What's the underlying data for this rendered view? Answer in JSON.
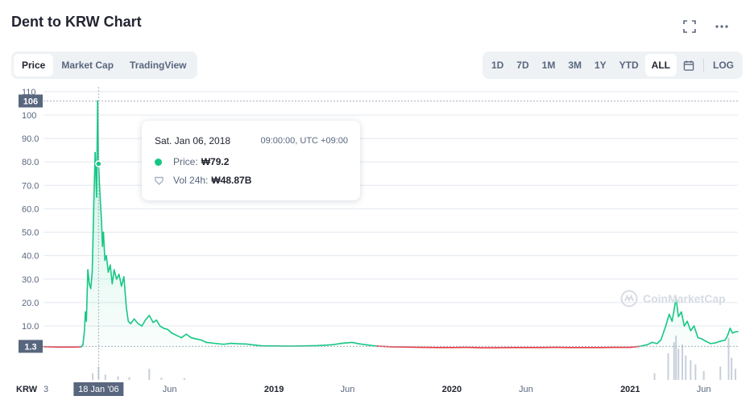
{
  "header": {
    "title": "Dent to KRW Chart"
  },
  "icons": {
    "expand": "expand-icon",
    "more": "more-icon",
    "calendar": "calendar-icon"
  },
  "tabs_left": [
    {
      "label": "Price",
      "active": true
    },
    {
      "label": "Market Cap",
      "active": false
    },
    {
      "label": "TradingView",
      "active": false
    }
  ],
  "tabs_right": [
    {
      "label": "1D",
      "active": false
    },
    {
      "label": "7D",
      "active": false
    },
    {
      "label": "1M",
      "active": false
    },
    {
      "label": "3M",
      "active": false
    },
    {
      "label": "1Y",
      "active": false
    },
    {
      "label": "YTD",
      "active": false
    },
    {
      "label": "ALL",
      "active": true
    },
    {
      "label": "LOG",
      "active": false
    }
  ],
  "tooltip": {
    "date": "Sat. Jan 06, 2018",
    "time": "09:00:00, UTC +09:00",
    "price_label": "Price:",
    "price_value": "₩79.2",
    "vol_label": "Vol 24h:",
    "vol_value": "₩48.87B"
  },
  "watermark": "CoinMarketCap",
  "colors": {
    "up": "#16c784",
    "down": "#ea3943",
    "label_bg": "#58667e",
    "grid": "#e3e8ef"
  },
  "chart_data": {
    "type": "line",
    "y_axis_title": "KRW",
    "y_ticks": [
      "110",
      "100",
      "90.0",
      "80.0",
      "70.0",
      "60.0",
      "50.0",
      "40.0",
      "30.0",
      "20.0",
      "10.0"
    ],
    "y_tick_values": [
      110,
      100,
      90,
      80,
      70,
      60,
      50,
      40,
      30,
      20,
      10
    ],
    "ylim": [
      -13,
      112
    ],
    "max_label": "106",
    "max_value": 106,
    "baseline_label": "1.3",
    "baseline_value": 1.3,
    "crosshair_label": "18 Jan '06",
    "crosshair_date": "2018-01-06",
    "crosshair_value": 79.2,
    "x_ticks": [
      {
        "label": "3",
        "date": "2017-09-15",
        "year": false
      },
      {
        "label": "Jun",
        "date": "2018-06-01",
        "year": false
      },
      {
        "label": "2019",
        "date": "2019-01-01",
        "year": true
      },
      {
        "label": "Jun",
        "date": "2019-06-01",
        "year": false
      },
      {
        "label": "2020",
        "date": "2020-01-01",
        "year": true
      },
      {
        "label": "Jun",
        "date": "2020-06-01",
        "year": false
      },
      {
        "label": "2021",
        "date": "2021-01-01",
        "year": true
      },
      {
        "label": "Jun",
        "date": "2021-06-01",
        "year": false
      }
    ],
    "xlim": [
      "2017-09-15",
      "2021-08-10"
    ],
    "series": [
      {
        "values": [
          [
            "2017-09-15",
            1.2
          ],
          [
            "2017-10-15",
            1.0
          ],
          [
            "2017-11-15",
            1.0
          ],
          [
            "2017-12-01",
            1.1
          ],
          [
            "2017-12-05",
            2.0
          ],
          [
            "2017-12-08",
            8.0
          ],
          [
            "2017-12-10",
            16.0
          ],
          [
            "2017-12-12",
            12.0
          ],
          [
            "2017-12-15",
            34.0
          ],
          [
            "2017-12-18",
            28.0
          ],
          [
            "2017-12-21",
            26.0
          ],
          [
            "2017-12-24",
            33.0
          ],
          [
            "2017-12-27",
            60.0
          ],
          [
            "2017-12-30",
            84.0
          ],
          [
            "2018-01-02",
            65.0
          ],
          [
            "2018-01-04",
            106.0
          ],
          [
            "2018-01-06",
            79.2
          ],
          [
            "2018-01-08",
            70.0
          ],
          [
            "2018-01-10",
            62.0
          ],
          [
            "2018-01-12",
            55.0
          ],
          [
            "2018-01-14",
            44.0
          ],
          [
            "2018-01-16",
            50.0
          ],
          [
            "2018-01-19",
            38.0
          ],
          [
            "2018-01-22",
            40.0
          ],
          [
            "2018-01-26",
            33.0
          ],
          [
            "2018-01-30",
            36.0
          ],
          [
            "2018-02-03",
            28.0
          ],
          [
            "2018-02-07",
            34.0
          ],
          [
            "2018-02-12",
            30.0
          ],
          [
            "2018-02-17",
            32.0
          ],
          [
            "2018-02-22",
            27.0
          ],
          [
            "2018-02-27",
            31.0
          ],
          [
            "2018-03-04",
            18.0
          ],
          [
            "2018-03-08",
            12.0
          ],
          [
            "2018-03-13",
            11.0
          ],
          [
            "2018-03-20",
            13.0
          ],
          [
            "2018-03-28",
            11.0
          ],
          [
            "2018-04-05",
            10.0
          ],
          [
            "2018-04-12",
            12.5
          ],
          [
            "2018-04-20",
            14.5
          ],
          [
            "2018-04-28",
            11.5
          ],
          [
            "2018-05-05",
            12.5
          ],
          [
            "2018-05-12",
            10.0
          ],
          [
            "2018-05-20",
            9.0
          ],
          [
            "2018-05-28",
            8.5
          ],
          [
            "2018-06-05",
            7.0
          ],
          [
            "2018-06-15",
            6.0
          ],
          [
            "2018-06-25",
            5.0
          ],
          [
            "2018-07-05",
            6.5
          ],
          [
            "2018-07-15",
            5.0
          ],
          [
            "2018-07-25",
            4.5
          ],
          [
            "2018-08-05",
            4.0
          ],
          [
            "2018-08-15",
            3.0
          ],
          [
            "2018-08-25",
            2.8
          ],
          [
            "2018-09-05",
            2.5
          ],
          [
            "2018-09-20",
            2.2
          ],
          [
            "2018-10-05",
            2.6
          ],
          [
            "2018-10-20",
            2.4
          ],
          [
            "2018-11-05",
            2.3
          ],
          [
            "2018-11-25",
            1.8
          ],
          [
            "2018-12-10",
            1.5
          ],
          [
            "2019-01-01",
            1.5
          ],
          [
            "2019-02-01",
            1.4
          ],
          [
            "2019-03-01",
            1.5
          ],
          [
            "2019-04-01",
            1.6
          ],
          [
            "2019-05-01",
            2.0
          ],
          [
            "2019-05-20",
            2.6
          ],
          [
            "2019-06-10",
            3.0
          ],
          [
            "2019-06-25",
            2.4
          ],
          [
            "2019-07-15",
            1.8
          ],
          [
            "2019-08-01",
            1.4
          ],
          [
            "2019-09-01",
            1.1
          ],
          [
            "2019-10-01",
            1.0
          ],
          [
            "2019-11-01",
            0.9
          ],
          [
            "2019-12-01",
            0.8
          ],
          [
            "2020-01-01",
            0.8
          ],
          [
            "2020-02-01",
            0.9
          ],
          [
            "2020-03-01",
            0.7
          ],
          [
            "2020-04-01",
            0.7
          ],
          [
            "2020-05-01",
            0.8
          ],
          [
            "2020-06-01",
            0.8
          ],
          [
            "2020-07-01",
            0.8
          ],
          [
            "2020-08-01",
            0.9
          ],
          [
            "2020-09-01",
            0.8
          ],
          [
            "2020-10-01",
            0.8
          ],
          [
            "2020-11-01",
            0.8
          ],
          [
            "2020-12-01",
            0.9
          ],
          [
            "2021-01-01",
            0.9
          ],
          [
            "2021-01-20",
            1.3
          ],
          [
            "2021-02-05",
            2.0
          ],
          [
            "2021-02-15",
            3.0
          ],
          [
            "2021-02-25",
            2.5
          ],
          [
            "2021-03-05",
            4.0
          ],
          [
            "2021-03-15",
            10.0
          ],
          [
            "2021-03-22",
            15.0
          ],
          [
            "2021-03-28",
            12.0
          ],
          [
            "2021-04-02",
            18.0
          ],
          [
            "2021-04-05",
            22.0
          ],
          [
            "2021-04-10",
            14.0
          ],
          [
            "2021-04-16",
            16.0
          ],
          [
            "2021-04-22",
            10.0
          ],
          [
            "2021-04-28",
            12.0
          ],
          [
            "2021-05-05",
            8.0
          ],
          [
            "2021-05-12",
            10.0
          ],
          [
            "2021-05-20",
            5.0
          ],
          [
            "2021-05-28",
            4.5
          ],
          [
            "2021-06-05",
            3.5
          ],
          [
            "2021-06-15",
            2.5
          ],
          [
            "2021-06-25",
            2.8
          ],
          [
            "2021-07-05",
            3.5
          ],
          [
            "2021-07-15",
            4.0
          ],
          [
            "2021-07-20",
            6.0
          ],
          [
            "2021-07-25",
            9.0
          ],
          [
            "2021-07-30",
            7.0
          ],
          [
            "2021-08-05",
            7.5
          ],
          [
            "2021-08-10",
            7.6
          ]
        ]
      }
    ],
    "volume_peaks": [
      [
        "2017-12-25",
        0.15
      ],
      [
        "2018-01-06",
        0.3
      ],
      [
        "2018-01-20",
        0.12
      ],
      [
        "2018-02-15",
        0.08
      ],
      [
        "2018-03-10",
        0.06
      ],
      [
        "2018-04-20",
        0.25
      ],
      [
        "2018-05-15",
        0.05
      ],
      [
        "2018-07-01",
        0.04
      ],
      [
        "2021-02-20",
        0.15
      ],
      [
        "2021-03-20",
        0.6
      ],
      [
        "2021-04-01",
        0.85
      ],
      [
        "2021-04-05",
        1.0
      ],
      [
        "2021-04-10",
        0.7
      ],
      [
        "2021-04-18",
        0.8
      ],
      [
        "2021-04-25",
        0.55
      ],
      [
        "2021-05-05",
        0.45
      ],
      [
        "2021-05-15",
        0.35
      ],
      [
        "2021-06-01",
        0.2
      ],
      [
        "2021-07-05",
        0.3
      ],
      [
        "2021-07-22",
        0.95
      ],
      [
        "2021-07-28",
        0.5
      ],
      [
        "2021-08-05",
        0.25
      ]
    ],
    "grid": true,
    "legend": "none"
  }
}
